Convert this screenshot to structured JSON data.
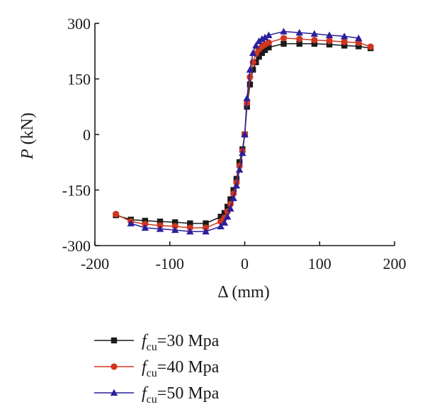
{
  "chart_data": {
    "type": "line",
    "xlabel": "Δ (mm)",
    "ylabel_italic": "P",
    "ylabel_rest": " (kN)",
    "xlim": [
      -200,
      200
    ],
    "ylim": [
      -300,
      300
    ],
    "xticks": [
      -200,
      -100,
      0,
      100,
      200
    ],
    "yticks": [
      300,
      150,
      0,
      -150,
      -300
    ],
    "grid": false,
    "legend_position": "bottom",
    "series": [
      {
        "name": "fcu=30 Mpa",
        "name_main": "f",
        "name_sub": "cu",
        "name_rest": "=30 Mpa",
        "color": "#1a1a1a",
        "marker": "square",
        "x": [
          -172,
          -152,
          -133,
          -113,
          -93,
          -73,
          -52,
          -32,
          -27,
          -23,
          -19,
          -15,
          -11,
          -7,
          -3,
          0,
          3,
          7,
          11,
          15,
          19,
          23,
          27,
          32,
          52,
          73,
          93,
          113,
          133,
          152,
          168
        ],
        "y": [
          -218,
          -230,
          -233,
          -235,
          -237,
          -240,
          -240,
          -222,
          -212,
          -195,
          -175,
          -150,
          -120,
          -75,
          -40,
          0,
          75,
          135,
          175,
          195,
          210,
          220,
          228,
          235,
          245,
          245,
          245,
          243,
          240,
          238,
          233
        ]
      },
      {
        "name": "fcu=40 Mpa",
        "name_main": "f",
        "name_sub": "cu",
        "name_rest": "=40 Mpa",
        "color": "#d0361e",
        "marker": "circle",
        "x": [
          -172,
          -152,
          -133,
          -113,
          -93,
          -73,
          -52,
          -32,
          -27,
          -23,
          -19,
          -15,
          -11,
          -7,
          -3,
          0,
          3,
          7,
          11,
          15,
          19,
          23,
          27,
          32,
          52,
          73,
          93,
          113,
          133,
          152,
          168
        ],
        "y": [
          -215,
          -235,
          -242,
          -246,
          -248,
          -252,
          -252,
          -235,
          -225,
          -208,
          -188,
          -160,
          -130,
          -85,
          -45,
          0,
          85,
          155,
          195,
          218,
          230,
          238,
          243,
          248,
          260,
          258,
          255,
          253,
          250,
          248,
          237
        ]
      },
      {
        "name": "fcu=50 Mpa",
        "name_main": "f",
        "name_sub": "cu",
        "name_rest": "=50 Mpa",
        "color": "#2a1f9c",
        "marker": "triangle",
        "x": [
          -152,
          -133,
          -113,
          -93,
          -73,
          -52,
          -32,
          -27,
          -23,
          -19,
          -15,
          -11,
          -7,
          -3,
          0,
          3,
          7,
          11,
          15,
          19,
          23,
          27,
          32,
          52,
          73,
          93,
          113,
          133,
          152
        ],
        "y": [
          -240,
          -252,
          -255,
          -258,
          -262,
          -262,
          -248,
          -238,
          -222,
          -200,
          -172,
          -138,
          -95,
          -50,
          0,
          98,
          175,
          220,
          240,
          252,
          258,
          262,
          268,
          278,
          275,
          272,
          268,
          265,
          260
        ]
      }
    ]
  }
}
